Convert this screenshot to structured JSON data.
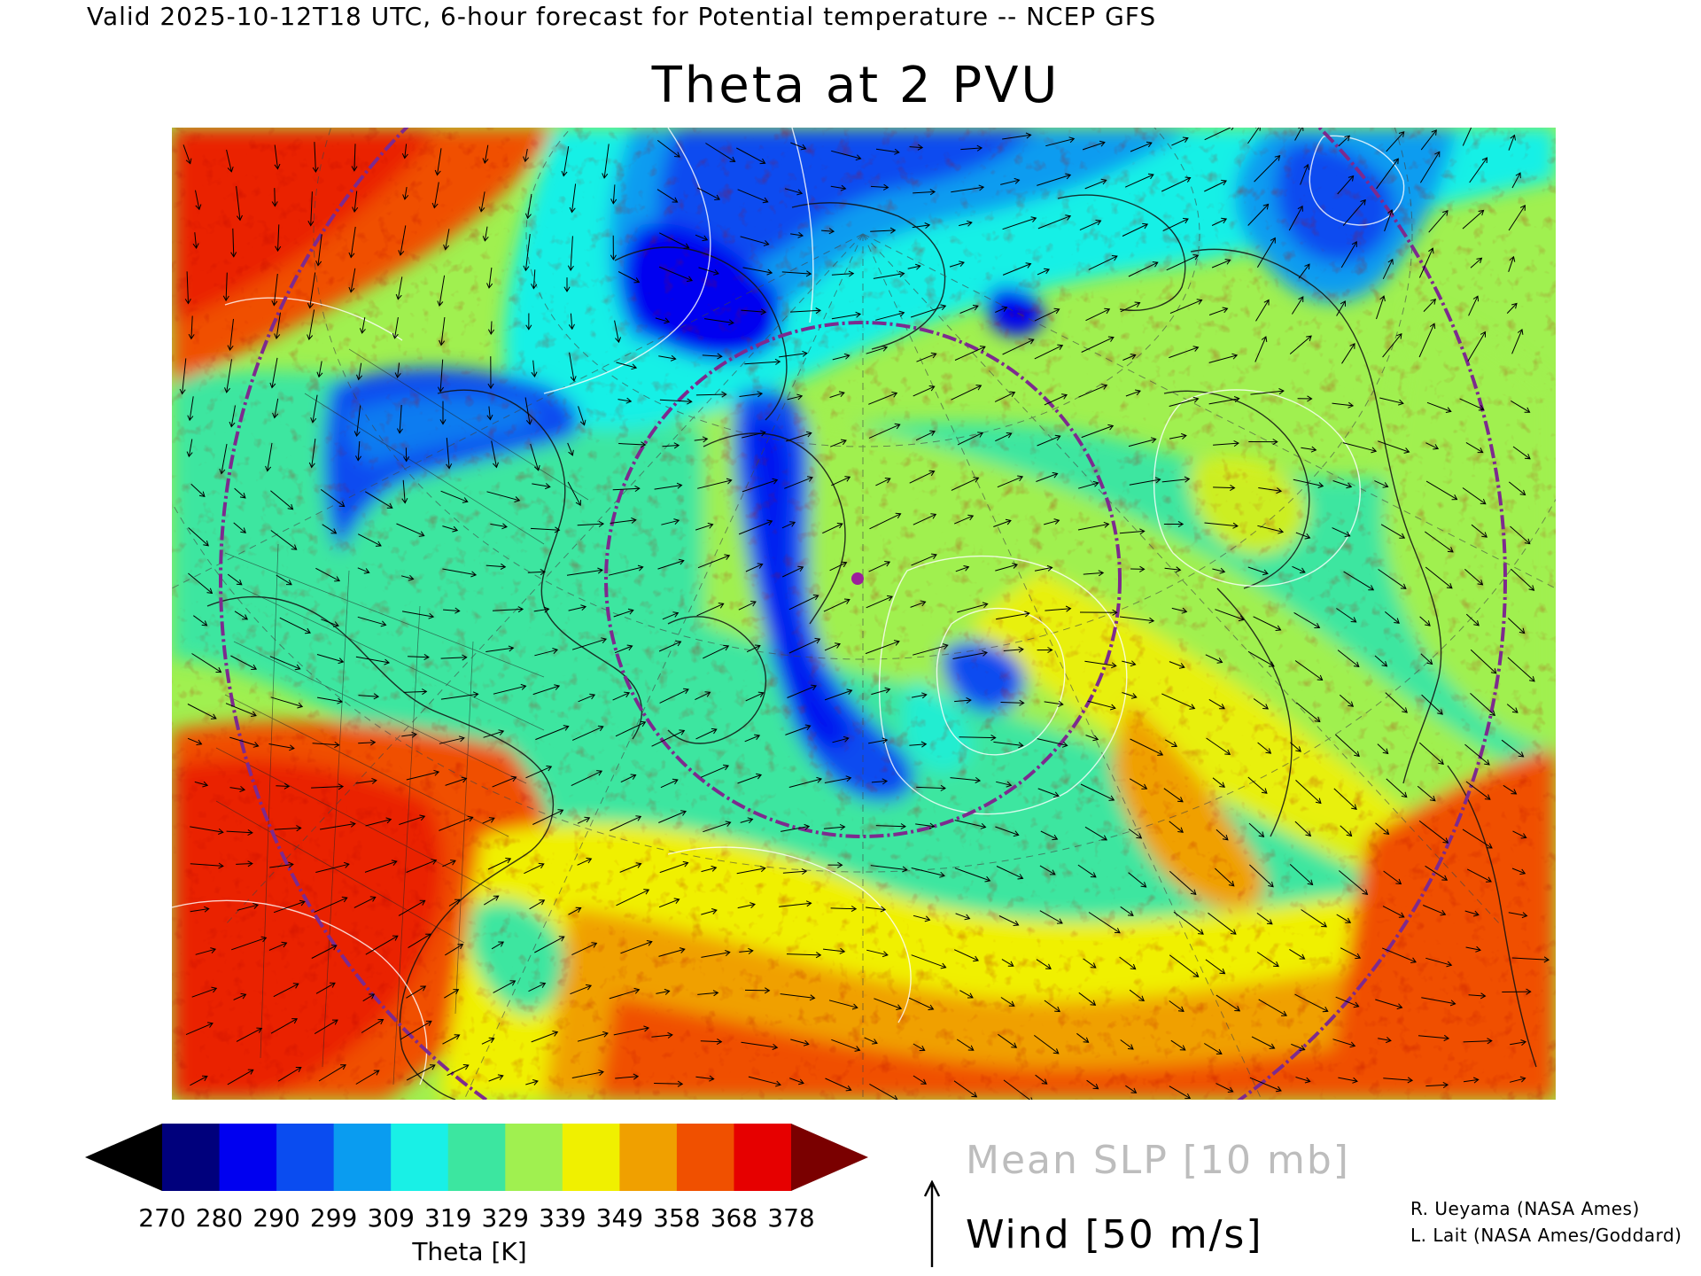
{
  "header": {
    "valid_line": "Valid 2025-10-12T18 UTC, 6-hour forecast for Potential temperature -- NCEP GFS"
  },
  "map": {
    "title": "Theta at 2 PVU",
    "projection": "polar stereographic, North Atlantic / North America / Europe",
    "fields": [
      "Theta (filled)",
      "Mean SLP contours",
      "Wind vectors"
    ],
    "marker_color": "#9c1f9c",
    "great_circle_color": "#7d2a8e"
  },
  "colorbar": {
    "label": "Theta [K]",
    "ticks": [
      "270",
      "280",
      "290",
      "299",
      "309",
      "319",
      "329",
      "339",
      "349",
      "358",
      "368",
      "378"
    ],
    "under_color": "#000000",
    "over_color": "#7a0000",
    "colors": [
      "#00007c",
      "#0000f0",
      "#0a4cf0",
      "#0a9cf0",
      "#19f0e6",
      "#3ce6a0",
      "#a0f050",
      "#f0f000",
      "#f0a000",
      "#f05000",
      "#e60000"
    ]
  },
  "legend": {
    "slp": "Mean SLP [10 mb]",
    "wind": "Wind [50 m/s]"
  },
  "credits": {
    "line1": "R. Ueyama (NASA Ames)",
    "line2": "L. Lait (NASA Ames/Goddard)"
  }
}
